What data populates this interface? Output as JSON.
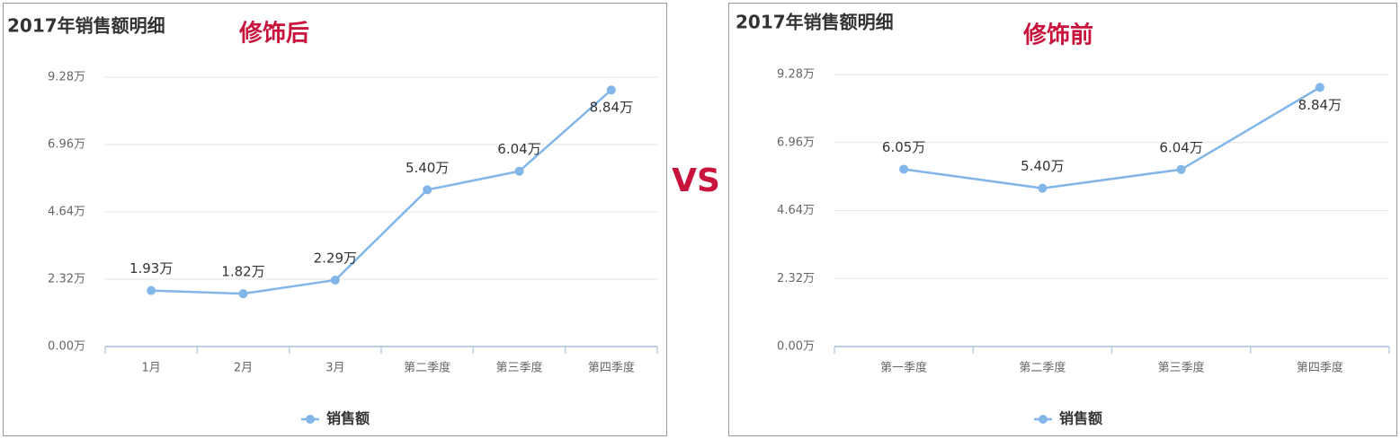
{
  "comparison_label": "VS",
  "chart_data": [
    {
      "type": "line",
      "title": "2017年销售额明细",
      "annotation": "修饰后",
      "categories": [
        "1月",
        "2月",
        "3月",
        "第二季度",
        "第三季度",
        "第四季度"
      ],
      "series": [
        {
          "name": "销售额",
          "color": "#82b6e8",
          "values": [
            1.93,
            1.82,
            2.29,
            5.4,
            6.04,
            8.84
          ],
          "value_labels": [
            "1.93万",
            "1.82万",
            "2.29万",
            "5.40万",
            "6.04万",
            "8.84万"
          ]
        }
      ],
      "ylim": [
        0,
        9.28
      ],
      "yticks": [
        {
          "value": 0,
          "label": "0.00万"
        },
        {
          "value": 2.32,
          "label": "2.32万"
        },
        {
          "value": 4.64,
          "label": "4.64万"
        },
        {
          "value": 6.96,
          "label": "6.96万"
        },
        {
          "value": 9.28,
          "label": "9.28万"
        }
      ],
      "grid": true,
      "legend": "bottom"
    },
    {
      "type": "line",
      "title": "2017年销售额明细",
      "annotation": "修饰前",
      "categories": [
        "第一季度",
        "第二季度",
        "第三季度",
        "第四季度"
      ],
      "series": [
        {
          "name": "销售额",
          "color": "#82b6e8",
          "values": [
            6.05,
            5.4,
            6.04,
            8.84
          ],
          "value_labels": [
            "6.05万",
            "5.40万",
            "6.04万",
            "8.84万"
          ]
        }
      ],
      "ylim": [
        0,
        9.28
      ],
      "yticks": [
        {
          "value": 0,
          "label": "0.00万"
        },
        {
          "value": 2.32,
          "label": "2.32万"
        },
        {
          "value": 4.64,
          "label": "4.64万"
        },
        {
          "value": 6.96,
          "label": "6.96万"
        },
        {
          "value": 9.28,
          "label": "9.28万"
        }
      ],
      "grid": true,
      "legend": "bottom"
    }
  ]
}
